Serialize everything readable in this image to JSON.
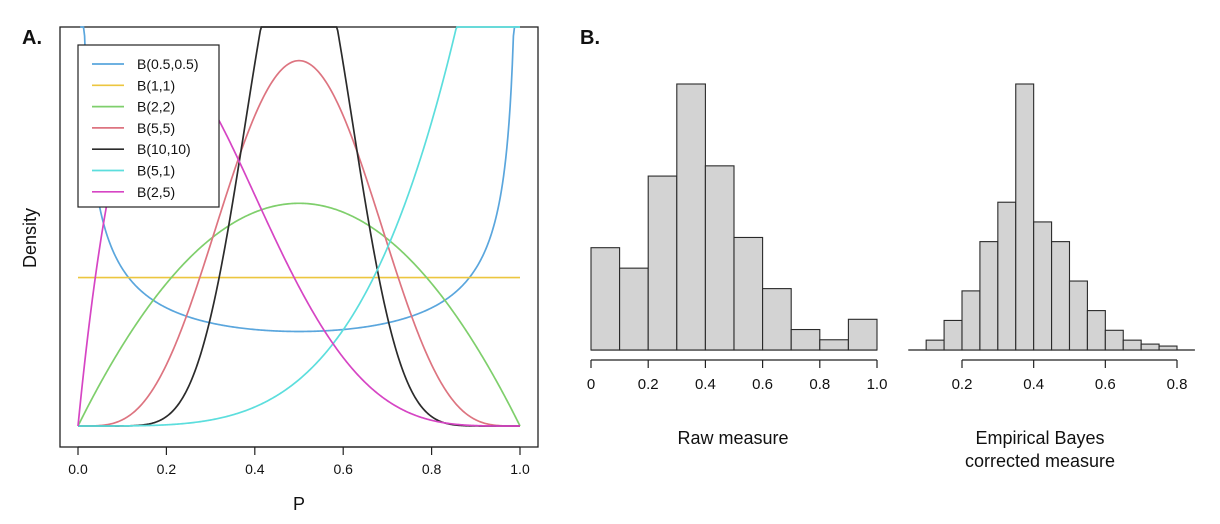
{
  "chart_data": [
    {
      "panel": "A.",
      "type": "line",
      "xlabel": "P",
      "ylabel": "Density",
      "xlim": [
        0,
        1
      ],
      "ylim": [
        0,
        2.6
      ],
      "x_ticks": [
        "0.0",
        "0.2",
        "0.4",
        "0.6",
        "0.8",
        "1.0"
      ],
      "x_tick_values": [
        0,
        0.2,
        0.4,
        0.6,
        0.8,
        1.0
      ],
      "legend_position": "top-left",
      "series": [
        {
          "name": "B(0.5,0.5)",
          "color": "#5aa6dd",
          "alpha": 0.5,
          "beta": 0.5
        },
        {
          "name": "B(1,1)",
          "color": "#ecc63f",
          "alpha": 1,
          "beta": 1
        },
        {
          "name": "B(2,2)",
          "color": "#7fcf6c",
          "alpha": 2,
          "beta": 2
        },
        {
          "name": "B(5,5)",
          "color": "#dd7480",
          "alpha": 5,
          "beta": 5
        },
        {
          "name": "B(10,10)",
          "color": "#2b2b2b",
          "alpha": 10,
          "beta": 10
        },
        {
          "name": "B(5,1)",
          "color": "#5cdedd",
          "alpha": 5,
          "beta": 1
        },
        {
          "name": "B(2,5)",
          "color": "#d645c4",
          "alpha": 2,
          "beta": 5
        }
      ]
    },
    {
      "panel": "B.",
      "type": "bar",
      "subtype": "histogram",
      "xlabel": "Raw measure",
      "x_ticks": [
        "0",
        "0.2",
        "0.4",
        "0.6",
        "0.8",
        "1.0"
      ],
      "x_tick_values": [
        0,
        0.2,
        0.4,
        0.6,
        0.8,
        1.0
      ],
      "bin_edges": [
        0,
        0.1,
        0.2,
        0.3,
        0.4,
        0.5,
        0.6,
        0.7,
        0.8,
        0.9,
        1.0
      ],
      "values": [
        10,
        8,
        17,
        26,
        18,
        11,
        6,
        2,
        1,
        3
      ],
      "ylim": [
        0,
        26
      ],
      "color": "#d3d3d3"
    },
    {
      "panel": "B.",
      "type": "bar",
      "subtype": "histogram",
      "xlabel": [
        "Empirical Bayes",
        "corrected measure"
      ],
      "x_ticks": [
        "0.2",
        "0.4",
        "0.6",
        "0.8"
      ],
      "x_tick_values": [
        0.2,
        0.4,
        0.6,
        0.8
      ],
      "bin_edges": [
        0.05,
        0.1,
        0.15,
        0.2,
        0.25,
        0.3,
        0.35,
        0.4,
        0.45,
        0.5,
        0.55,
        0.6,
        0.65,
        0.7,
        0.75,
        0.8,
        0.85
      ],
      "values": [
        0,
        1,
        3,
        6,
        11,
        15,
        27,
        13,
        11,
        7,
        4,
        2,
        1,
        0.6,
        0.4,
        0
      ],
      "ylim": [
        0,
        27
      ],
      "color": "#d3d3d3"
    }
  ]
}
